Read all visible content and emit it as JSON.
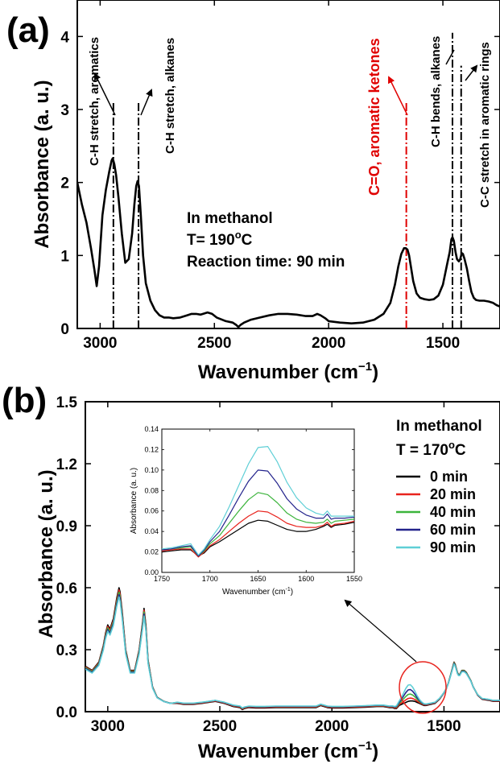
{
  "panels": {
    "a": {
      "label": "(a)"
    },
    "b": {
      "label": "(b)"
    }
  },
  "chart_data": [
    {
      "id": "a",
      "type": "line",
      "xlabel_main": "Wavenumber (cm",
      "xlabel_sup": "−1",
      "xlabel_close": ")",
      "ylabel": "Absorbance (a. u.)",
      "xlim": [
        3100,
        1250
      ],
      "ylim": [
        0,
        4.5
      ],
      "x_reversed": true,
      "xticks": [
        3000,
        2500,
        2000,
        1500
      ],
      "yticks": [
        0,
        1,
        2,
        3,
        4
      ],
      "series": [
        {
          "color": "#000000",
          "x": [
            3100,
            3080,
            3060,
            3040,
            3025,
            3015,
            3005,
            2990,
            2975,
            2960,
            2950,
            2945,
            2938,
            2930,
            2920,
            2905,
            2890,
            2875,
            2860,
            2850,
            2842,
            2836,
            2830,
            2822,
            2812,
            2800,
            2780,
            2760,
            2740,
            2720,
            2700,
            2680,
            2650,
            2620,
            2600,
            2580,
            2560,
            2530,
            2510,
            2490,
            2450,
            2420,
            2405,
            2395,
            2385,
            2370,
            2340,
            2300,
            2260,
            2220,
            2180,
            2140,
            2100,
            2070,
            2050,
            2035,
            2015,
            2000,
            1950,
            1900,
            1850,
            1800,
            1760,
            1730,
            1710,
            1695,
            1682,
            1670,
            1662,
            1655,
            1648,
            1640,
            1630,
            1615,
            1600,
            1580,
            1560,
            1540,
            1520,
            1500,
            1490,
            1480,
            1470,
            1463,
            1458,
            1452,
            1445,
            1438,
            1430,
            1425,
            1420,
            1416,
            1412,
            1405,
            1395,
            1385,
            1375,
            1365,
            1355,
            1340,
            1320,
            1300,
            1280,
            1265,
            1250
          ],
          "y": [
            2.0,
            1.7,
            1.45,
            1.1,
            0.8,
            0.58,
            0.85,
            1.55,
            1.9,
            2.15,
            2.3,
            2.33,
            2.25,
            2.1,
            1.8,
            1.3,
            0.9,
            0.95,
            1.3,
            1.7,
            1.95,
            2.02,
            1.95,
            1.55,
            1.0,
            0.62,
            0.38,
            0.25,
            0.18,
            0.15,
            0.15,
            0.14,
            0.15,
            0.18,
            0.2,
            0.2,
            0.19,
            0.22,
            0.2,
            0.15,
            0.1,
            0.08,
            0.05,
            0.02,
            0.05,
            0.08,
            0.12,
            0.15,
            0.18,
            0.2,
            0.2,
            0.19,
            0.17,
            0.17,
            0.2,
            0.18,
            0.14,
            0.1,
            0.08,
            0.07,
            0.08,
            0.12,
            0.2,
            0.35,
            0.6,
            0.85,
            1.02,
            1.1,
            1.1,
            1.08,
            1.0,
            0.85,
            0.65,
            0.48,
            0.42,
            0.4,
            0.39,
            0.4,
            0.45,
            0.6,
            0.75,
            0.9,
            1.05,
            1.22,
            1.25,
            1.2,
            1.05,
            0.95,
            0.92,
            0.94,
            1.0,
            1.03,
            1.02,
            0.95,
            0.82,
            0.65,
            0.5,
            0.42,
            0.39,
            0.38,
            0.38,
            0.37,
            0.35,
            0.32,
            0.3
          ]
        }
      ],
      "vlines": [
        {
          "x": 2942,
          "y_from": 0,
          "y_to": 3.1,
          "color": "#000000"
        },
        {
          "x": 2832,
          "y_from": 0,
          "y_to": 3.1,
          "color": "#000000"
        },
        {
          "x": 1660,
          "y_from": 0,
          "y_to": 3.1,
          "color": "#e00000"
        },
        {
          "x": 1458,
          "y_from": 0,
          "y_to": 4.05,
          "color": "#000000"
        },
        {
          "x": 1420,
          "y_from": 0,
          "y_to": 3.6,
          "color": "#000000"
        }
      ],
      "annotations": [
        {
          "text": "C-H stretch, aromatics",
          "color": "#000000"
        },
        {
          "text": "C-H stretch, alkanes",
          "color": "#000000"
        },
        {
          "text": "C=O, aromatic ketones",
          "color": "#e00000"
        },
        {
          "text": "C-H bends, alkanes",
          "color": "#000000"
        },
        {
          "text": "C-C stretch in aromatic rings",
          "color": "#000000"
        }
      ],
      "conditions": {
        "solvent": "In methanol",
        "temp_prefix": "T= 190",
        "temp_deg": "o",
        "temp_unit": "C",
        "time": "Reaction time: 90 min"
      }
    },
    {
      "id": "b",
      "type": "line",
      "xlabel_main": "Wavenumber (cm",
      "xlabel_sup": "−1",
      "xlabel_close": ")",
      "ylabel": "Absorbance (a. u.)",
      "xlim": [
        3100,
        1250
      ],
      "ylim": [
        0,
        1.5
      ],
      "x_reversed": true,
      "xticks": [
        3000,
        2500,
        2000,
        1500
      ],
      "yticks": [
        "0.0",
        "0.3",
        "0.6",
        "0.9",
        "1.2",
        "1.5"
      ],
      "x": [
        3100,
        3070,
        3040,
        3020,
        3010,
        3000,
        2990,
        2975,
        2960,
        2950,
        2945,
        2935,
        2920,
        2900,
        2880,
        2860,
        2845,
        2838,
        2830,
        2820,
        2800,
        2780,
        2750,
        2720,
        2690,
        2660,
        2620,
        2580,
        2550,
        2520,
        2500,
        2480,
        2440,
        2410,
        2400,
        2390,
        2370,
        2340,
        2300,
        2250,
        2200,
        2150,
        2100,
        2070,
        2050,
        2035,
        2020,
        2000,
        1950,
        1900,
        1850,
        1800,
        1770,
        1745,
        1730,
        1720,
        1712,
        1700,
        1690,
        1680,
        1670,
        1660,
        1650,
        1640,
        1630,
        1620,
        1610,
        1600,
        1590,
        1580,
        1560,
        1540,
        1520,
        1500,
        1490,
        1480,
        1470,
        1460,
        1455,
        1450,
        1445,
        1440,
        1435,
        1430,
        1425,
        1420,
        1415,
        1410,
        1400,
        1390,
        1380,
        1370,
        1360,
        1350,
        1330,
        1300,
        1280,
        1250
      ],
      "base": [
        0.22,
        0.2,
        0.24,
        0.32,
        0.38,
        0.42,
        0.4,
        0.45,
        0.55,
        0.6,
        0.58,
        0.48,
        0.3,
        0.2,
        0.2,
        0.3,
        0.43,
        0.5,
        0.42,
        0.25,
        0.12,
        0.07,
        0.05,
        0.04,
        0.04,
        0.035,
        0.035,
        0.04,
        0.045,
        0.05,
        0.045,
        0.04,
        0.025,
        0.02,
        0.01,
        0.015,
        0.02,
        0.018,
        0.018,
        0.02,
        0.02,
        0.02,
        0.02,
        0.02,
        0.03,
        0.025,
        0.02,
        0.018,
        0.018,
        0.02,
        0.022,
        0.025,
        0.025,
        0.02,
        0.02,
        0.015,
        0.015,
        0.03,
        0.035,
        0.04,
        0.045,
        0.05,
        0.052,
        0.052,
        0.05,
        0.045,
        0.04,
        0.035,
        0.03,
        0.03,
        0.035,
        0.04,
        0.06,
        0.09,
        0.11,
        0.14,
        0.18,
        0.22,
        0.24,
        0.23,
        0.21,
        0.19,
        0.18,
        0.18,
        0.19,
        0.2,
        0.2,
        0.2,
        0.19,
        0.17,
        0.15,
        0.12,
        0.1,
        0.08,
        0.06,
        0.055,
        0.05,
        0.05
      ],
      "series": [
        {
          "name": "0 min",
          "color": "#000000",
          "offset": 0.0,
          "bump": 0.0,
          "scale": 1.0
        },
        {
          "name": "20 min",
          "color": "#e8231d",
          "offset": 0.005,
          "bump": 0.012,
          "scale": 0.98
        },
        {
          "name": "40 min",
          "color": "#3cb43c",
          "offset": 0.01,
          "bump": 0.03,
          "scale": 0.96
        },
        {
          "name": "60 min",
          "color": "#23238c",
          "offset": 0.012,
          "bump": 0.052,
          "scale": 0.94
        },
        {
          "name": "90 min",
          "color": "#5fcfd6",
          "offset": 0.015,
          "bump": 0.075,
          "scale": 0.92
        }
      ],
      "conditions": {
        "solvent": "In methanol",
        "temp_prefix": "T = 170",
        "temp_deg": "o",
        "temp_unit": "C"
      },
      "inset": {
        "type": "line",
        "xlabel_main": "Wavenumber (cm",
        "xlabel_sup": "-1",
        "xlabel_close": ")",
        "ylabel": "Absorbance (a. u.)",
        "xlim": [
          1750,
          1550
        ],
        "ylim": [
          0,
          0.14
        ],
        "xticks": [
          1750,
          1700,
          1650,
          1600,
          1550
        ],
        "yticks": [
          "0.00",
          "0.02",
          "0.04",
          "0.06",
          "0.08",
          "0.10",
          "0.12",
          "0.14"
        ],
        "x": [
          1750,
          1740,
          1730,
          1720,
          1712,
          1706,
          1700,
          1690,
          1680,
          1670,
          1660,
          1650,
          1640,
          1630,
          1620,
          1610,
          1600,
          1590,
          1582,
          1578,
          1574,
          1570,
          1560,
          1550
        ],
        "series": [
          {
            "name": "0 min",
            "color": "#000000",
            "y": [
              0.02,
              0.021,
              0.022,
              0.022,
              0.016,
              0.019,
              0.025,
              0.03,
              0.036,
              0.042,
              0.048,
              0.051,
              0.05,
              0.046,
              0.042,
              0.04,
              0.04,
              0.042,
              0.045,
              0.047,
              0.044,
              0.046,
              0.047,
              0.049
            ]
          },
          {
            "name": "20 min",
            "color": "#e8231d",
            "y": [
              0.021,
              0.022,
              0.023,
              0.023,
              0.015,
              0.02,
              0.026,
              0.032,
              0.04,
              0.048,
              0.055,
              0.06,
              0.059,
              0.054,
              0.048,
              0.045,
              0.044,
              0.044,
              0.046,
              0.049,
              0.045,
              0.047,
              0.048,
              0.05
            ]
          },
          {
            "name": "40 min",
            "color": "#3cb43c",
            "y": [
              0.022,
              0.023,
              0.024,
              0.025,
              0.016,
              0.021,
              0.028,
              0.036,
              0.048,
              0.06,
              0.071,
              0.078,
              0.076,
              0.068,
              0.058,
              0.052,
              0.049,
              0.048,
              0.049,
              0.052,
              0.048,
              0.05,
              0.051,
              0.052
            ]
          },
          {
            "name": "60 min",
            "color": "#23238c",
            "y": [
              0.022,
              0.023,
              0.025,
              0.026,
              0.016,
              0.022,
              0.03,
              0.04,
              0.056,
              0.073,
              0.089,
              0.1,
              0.099,
              0.087,
              0.072,
              0.062,
              0.056,
              0.053,
              0.053,
              0.057,
              0.052,
              0.053,
              0.053,
              0.054
            ]
          },
          {
            "name": "90 min",
            "color": "#5fcfd6",
            "y": [
              0.023,
              0.024,
              0.026,
              0.028,
              0.017,
              0.023,
              0.032,
              0.045,
              0.064,
              0.085,
              0.106,
              0.122,
              0.123,
              0.108,
              0.088,
              0.073,
              0.063,
              0.058,
              0.056,
              0.06,
              0.055,
              0.055,
              0.055,
              0.055
            ]
          }
        ]
      }
    }
  ]
}
